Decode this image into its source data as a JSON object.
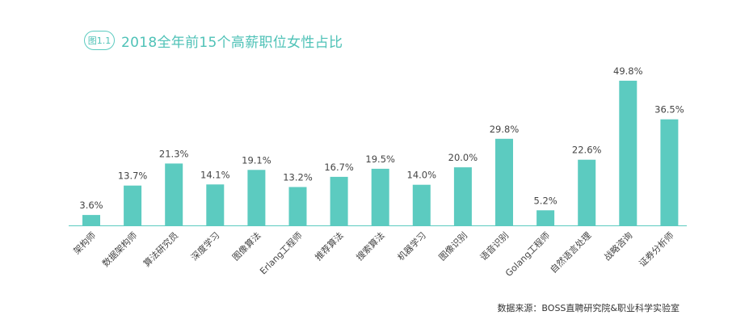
{
  "figure_label": "图1.1",
  "source": "数据来源：BOSS直聘研究院&职业科学实验室",
  "colors": {
    "bar": "#5ccbc0",
    "accent": "#4fc2b7",
    "axis": "#5ccbc0",
    "label": "#444444"
  },
  "chart_data": {
    "type": "bar",
    "title": "2018全年前15个高薪职位女性占比",
    "xlabel": "",
    "ylabel": "",
    "ylim": [
      0,
      52
    ],
    "grid": false,
    "categories": [
      "架构师",
      "数据架构师",
      "算法研究员",
      "深度学习",
      "图像算法",
      "Erlang工程师",
      "推荐算法",
      "搜索算法",
      "机器学习",
      "图像识别",
      "语音识别",
      "Golang工程师",
      "自然语言处理",
      "战略咨询",
      "证券分析师"
    ],
    "values": [
      3.6,
      13.7,
      21.3,
      14.1,
      19.1,
      13.2,
      16.7,
      19.5,
      14.0,
      20.0,
      29.8,
      5.2,
      22.6,
      49.8,
      36.5
    ],
    "value_labels": [
      "3.6%",
      "13.7%",
      "21.3%",
      "14.1%",
      "19.1%",
      "13.2%",
      "16.7%",
      "19.5%",
      "14.0%",
      "20.0%",
      "29.8%",
      "5.2%",
      "22.6%",
      "49.8%",
      "36.5%"
    ]
  }
}
